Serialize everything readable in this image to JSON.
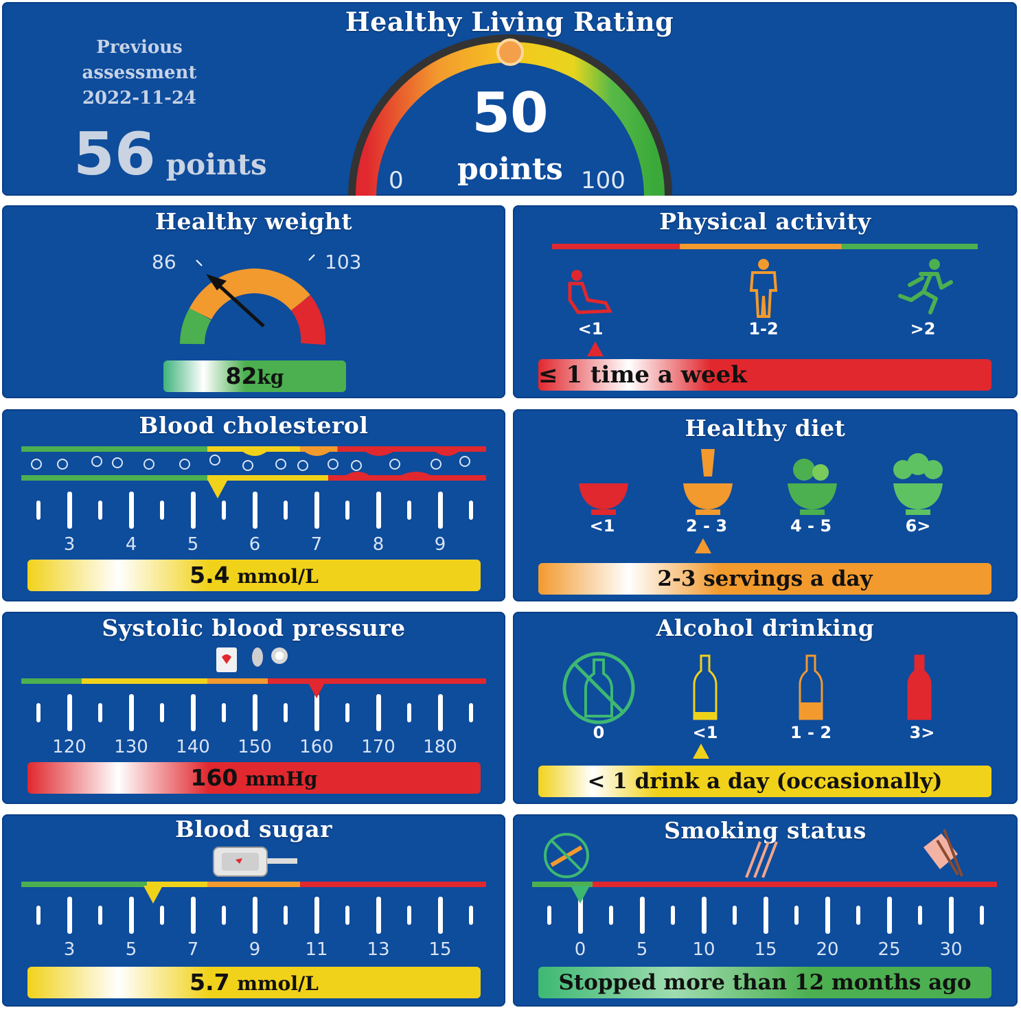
{
  "header": {
    "title": "Healthy Living Rating",
    "previous_label_1": "Previous",
    "previous_label_2": "assessment",
    "previous_date": "2022-11-24",
    "previous_points": "56",
    "previous_unit": "points",
    "current_points": "50",
    "current_unit": "points",
    "gauge_min": "0",
    "gauge_max": "100",
    "score_fraction": 0.5
  },
  "weight": {
    "title": "Healthy weight",
    "range_low": "86",
    "range_high": "103",
    "value": "82",
    "unit": "kg"
  },
  "activity": {
    "title": "Physical activity",
    "levels": [
      "<1",
      "1-2",
      ">2"
    ],
    "icons": [
      "sitting-person-icon",
      "standing-person-icon",
      "running-person-icon"
    ],
    "selected_index": 0,
    "result": "≤ 1 time a week"
  },
  "cholesterol": {
    "title": "Blood cholesterol",
    "ticks": [
      "3",
      "4",
      "5",
      "6",
      "7",
      "8",
      "9"
    ],
    "marker_value": 5.4,
    "value": "5.4",
    "unit": "mmol/L"
  },
  "diet": {
    "title": "Healthy diet",
    "levels": [
      "<1",
      "2 - 3",
      "4 - 5",
      "6>"
    ],
    "selected_index": 1,
    "result": "2-3 servings a day"
  },
  "blood_pressure": {
    "title": "Systolic blood pressure",
    "ticks": [
      "120",
      "130",
      "140",
      "150",
      "160",
      "170",
      "180"
    ],
    "marker_value": 160,
    "value": "160",
    "unit": "mmHg"
  },
  "alcohol": {
    "title": "Alcohol drinking",
    "levels": [
      "0",
      "<1",
      "1 - 2",
      "3>"
    ],
    "selected_index": 1,
    "result": "< 1 drink a day (occasionally)"
  },
  "sugar": {
    "title": "Blood sugar",
    "ticks": [
      "3",
      "5",
      "7",
      "9",
      "11",
      "13",
      "15"
    ],
    "marker_value": 5.7,
    "value": "5.7",
    "unit": "mmol/L"
  },
  "smoking": {
    "title": "Smoking status",
    "ticks": [
      "0",
      "5",
      "10",
      "15",
      "20",
      "25",
      "30"
    ],
    "marker_value": 0,
    "result": "Stopped more than 12 months ago"
  },
  "colors": {
    "panel": "#0e4c9c",
    "green": "#4caf50",
    "yellow": "#f1d21b",
    "orange": "#f29a2e",
    "red": "#e0282e"
  }
}
